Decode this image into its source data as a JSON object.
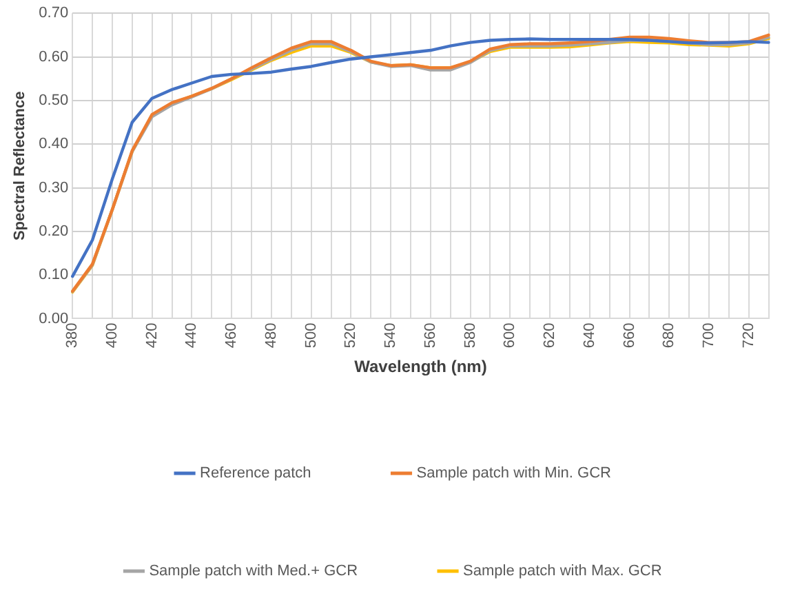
{
  "chart_data": {
    "type": "line",
    "xlabel": "Wavelength (nm)",
    "ylabel": "Spectral Reflectance",
    "categories": [
      "380",
      null,
      "400",
      null,
      "420",
      null,
      "440",
      null,
      "460",
      null,
      "480",
      null,
      "500",
      null,
      "520",
      null,
      "540",
      null,
      "560",
      null,
      "580",
      null,
      "600",
      null,
      "620",
      null,
      "640",
      null,
      "660",
      null,
      "680",
      null,
      "700",
      null,
      "720",
      null
    ],
    "ylim": [
      0,
      0.7
    ],
    "yticks": [
      {
        "value": 0,
        "label": "0.00"
      },
      {
        "value": 0.1,
        "label": "0.10"
      },
      {
        "value": 0.2,
        "label": "0.20"
      },
      {
        "value": 0.3,
        "label": "0.30"
      },
      {
        "value": 0.4,
        "label": "0.40"
      },
      {
        "value": 0.5,
        "label": "0.50"
      },
      {
        "value": 0.6,
        "label": "0.60"
      },
      {
        "value": 0.7,
        "label": "0.70"
      }
    ],
    "grid": true,
    "legend": "bottom",
    "marker": "none",
    "line_style": "solid",
    "series": [
      {
        "name": "Reference patch",
        "color": "#4472c4",
        "values": [
          0.097,
          0.18,
          0.32,
          0.45,
          0.505,
          0.525,
          0.54,
          0.555,
          0.56,
          0.562,
          0.565,
          0.572,
          0.578,
          0.587,
          0.595,
          0.6,
          0.605,
          0.61,
          0.615,
          0.625,
          0.633,
          0.638,
          0.64,
          0.641,
          0.64,
          0.64,
          0.64,
          0.64,
          0.64,
          0.638,
          0.635,
          0.632,
          0.632,
          0.633,
          0.635,
          0.633
        ]
      },
      {
        "name": "Sample patch with Min. GCR",
        "color": "#ed7d31",
        "values": [
          0.063,
          0.125,
          0.25,
          0.385,
          0.468,
          0.495,
          0.51,
          0.528,
          0.55,
          0.575,
          0.598,
          0.62,
          0.635,
          0.635,
          0.615,
          0.59,
          0.58,
          0.582,
          0.575,
          0.575,
          0.59,
          0.618,
          0.628,
          0.63,
          0.63,
          0.632,
          0.635,
          0.64,
          0.645,
          0.645,
          0.642,
          0.637,
          0.633,
          0.633,
          0.635,
          0.65
        ]
      },
      {
        "name": "Sample patch with Med.+ GCR",
        "color": "#a5a5a5",
        "values": [
          0.062,
          0.123,
          0.25,
          0.383,
          0.463,
          0.49,
          0.508,
          0.527,
          0.55,
          0.572,
          0.594,
          0.615,
          0.63,
          0.63,
          0.612,
          0.588,
          0.578,
          0.58,
          0.57,
          0.57,
          0.587,
          0.615,
          0.625,
          0.625,
          0.625,
          0.627,
          0.63,
          0.633,
          0.638,
          0.638,
          0.636,
          0.632,
          0.628,
          0.628,
          0.632,
          0.645
        ]
      },
      {
        "name": "Sample patch with Max. GCR",
        "color": "#ffc000",
        "values": [
          0.061,
          0.122,
          0.25,
          0.383,
          0.465,
          0.493,
          0.51,
          0.527,
          0.548,
          0.57,
          0.592,
          0.61,
          0.625,
          0.625,
          0.61,
          0.588,
          0.58,
          0.582,
          0.575,
          0.575,
          0.588,
          0.612,
          0.622,
          0.622,
          0.622,
          0.623,
          0.627,
          0.632,
          0.635,
          0.633,
          0.632,
          0.628,
          0.627,
          0.625,
          0.63,
          0.642
        ]
      }
    ]
  }
}
